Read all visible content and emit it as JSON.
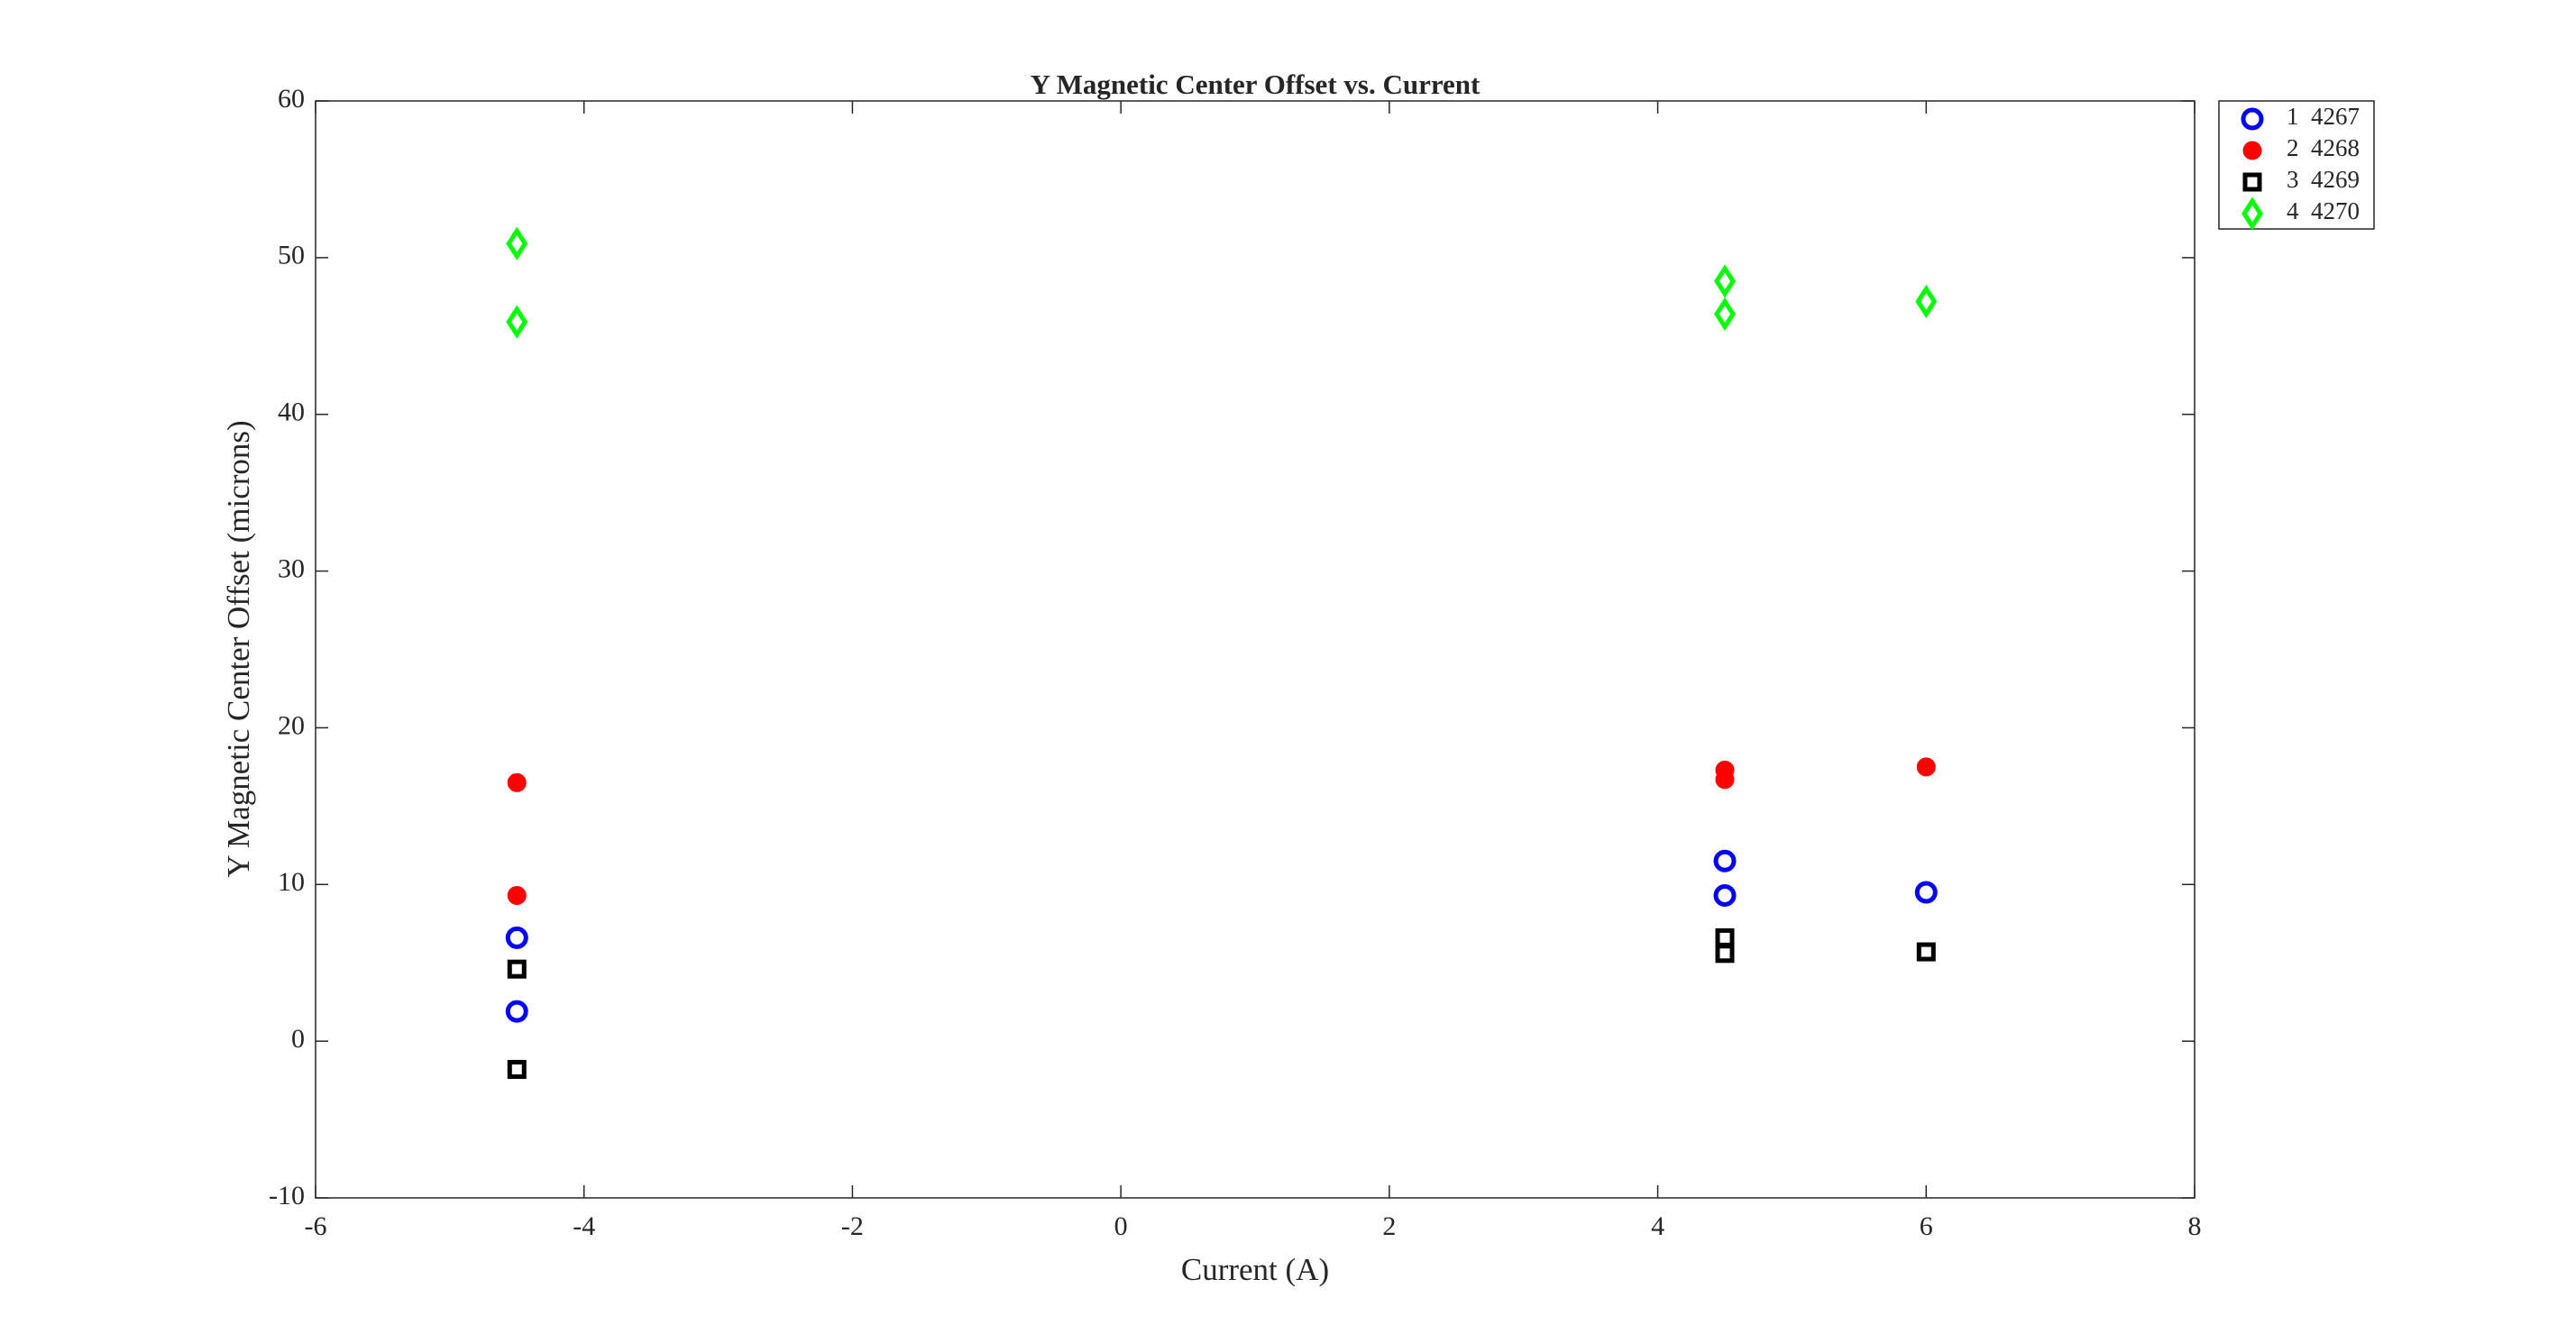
{
  "chart_data": {
    "type": "scatter",
    "title": "Y Magnetic Center Offset vs. Current",
    "x_label": "Current (A)",
    "y_label": "Y Magnetic Center Offset (microns)",
    "xlim": [
      -6,
      8
    ],
    "xticks": [
      -6,
      -4,
      -2,
      0,
      2,
      4,
      6,
      8
    ],
    "ylim": [
      -10,
      60
    ],
    "yticks": [
      -10,
      0,
      10,
      20,
      30,
      40,
      50,
      60
    ],
    "legend": "outside-top-right",
    "series": [
      {
        "name": "1  4267",
        "color": "#0000ff",
        "marker": "circle",
        "filled": false,
        "x": [
          -4.5,
          -4.5,
          4.5,
          4.5,
          6
        ],
        "values": [
          6.6,
          1.9,
          11.5,
          9.3,
          9.5
        ]
      },
      {
        "name": "2  4268",
        "color": "#ff0000",
        "marker": "circle",
        "filled": true,
        "x": [
          -4.5,
          -4.5,
          4.5,
          4.5,
          6
        ],
        "values": [
          16.5,
          9.3,
          17.3,
          16.7,
          17.5
        ]
      },
      {
        "name": "3  4269",
        "color": "#000000",
        "marker": "square",
        "filled": false,
        "x": [
          -4.5,
          -4.5,
          4.5,
          4.5,
          6
        ],
        "values": [
          4.6,
          -1.8,
          6.6,
          5.6,
          5.7
        ]
      },
      {
        "name": "4  4270",
        "color": "#00ff00",
        "marker": "diamond",
        "filled": false,
        "x": [
          -4.5,
          -4.5,
          4.5,
          4.5,
          6
        ],
        "values": [
          50.9,
          45.9,
          48.5,
          46.4,
          47.2
        ]
      }
    ]
  }
}
